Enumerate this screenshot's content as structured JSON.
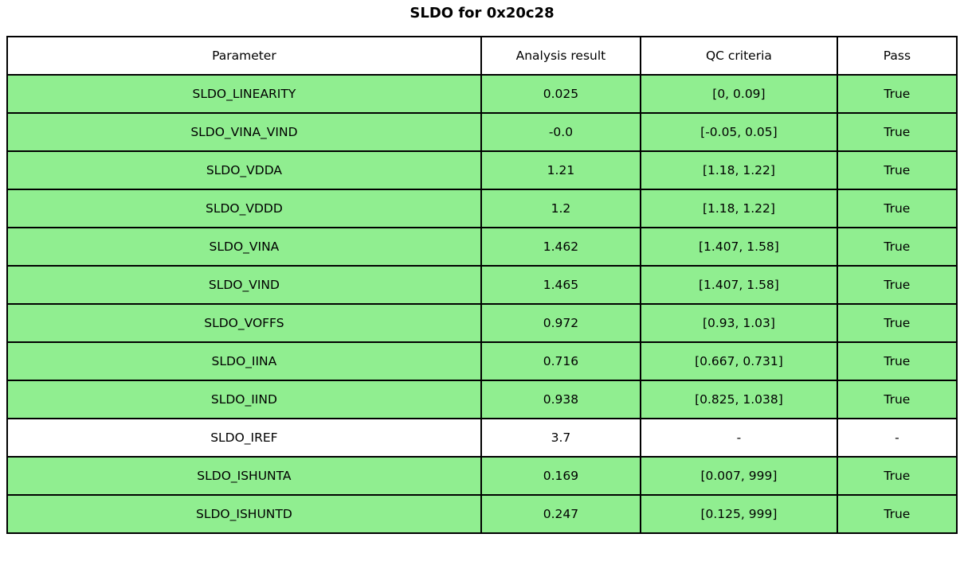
{
  "title": "SLDO for 0x20c28",
  "colors": {
    "pass_row_green": "#90EE90",
    "border": "#000000",
    "background": "#ffffff"
  },
  "chart_data": {
    "type": "table",
    "title": "SLDO for 0x20c28",
    "columns": [
      "Parameter",
      "Analysis result",
      "QC criteria",
      "Pass"
    ],
    "rows": [
      {
        "cells": [
          "SLDO_LINEARITY",
          "0.025",
          "[0, 0.09]",
          "True"
        ],
        "highlighted": true
      },
      {
        "cells": [
          "SLDO_VINA_VIND",
          "-0.0",
          "[-0.05, 0.05]",
          "True"
        ],
        "highlighted": true
      },
      {
        "cells": [
          "SLDO_VDDA",
          "1.21",
          "[1.18, 1.22]",
          "True"
        ],
        "highlighted": true
      },
      {
        "cells": [
          "SLDO_VDDD",
          "1.2",
          "[1.18, 1.22]",
          "True"
        ],
        "highlighted": true
      },
      {
        "cells": [
          "SLDO_VINA",
          "1.462",
          "[1.407, 1.58]",
          "True"
        ],
        "highlighted": true
      },
      {
        "cells": [
          "SLDO_VIND",
          "1.465",
          "[1.407, 1.58]",
          "True"
        ],
        "highlighted": true
      },
      {
        "cells": [
          "SLDO_VOFFS",
          "0.972",
          "[0.93, 1.03]",
          "True"
        ],
        "highlighted": true
      },
      {
        "cells": [
          "SLDO_IINA",
          "0.716",
          "[0.667, 0.731]",
          "True"
        ],
        "highlighted": true
      },
      {
        "cells": [
          "SLDO_IIND",
          "0.938",
          "[0.825, 1.038]",
          "True"
        ],
        "highlighted": true
      },
      {
        "cells": [
          "SLDO_IREF",
          "3.7",
          "-",
          "-"
        ],
        "highlighted": false
      },
      {
        "cells": [
          "SLDO_ISHUNTA",
          "0.169",
          "[0.007, 999]",
          "True"
        ],
        "highlighted": true
      },
      {
        "cells": [
          "SLDO_ISHUNTD",
          "0.247",
          "[0.125, 999]",
          "True"
        ],
        "highlighted": true
      }
    ],
    "layout": {
      "legend": "none",
      "grid": "full-borders",
      "highlight_meaning": "row passed QC"
    }
  }
}
